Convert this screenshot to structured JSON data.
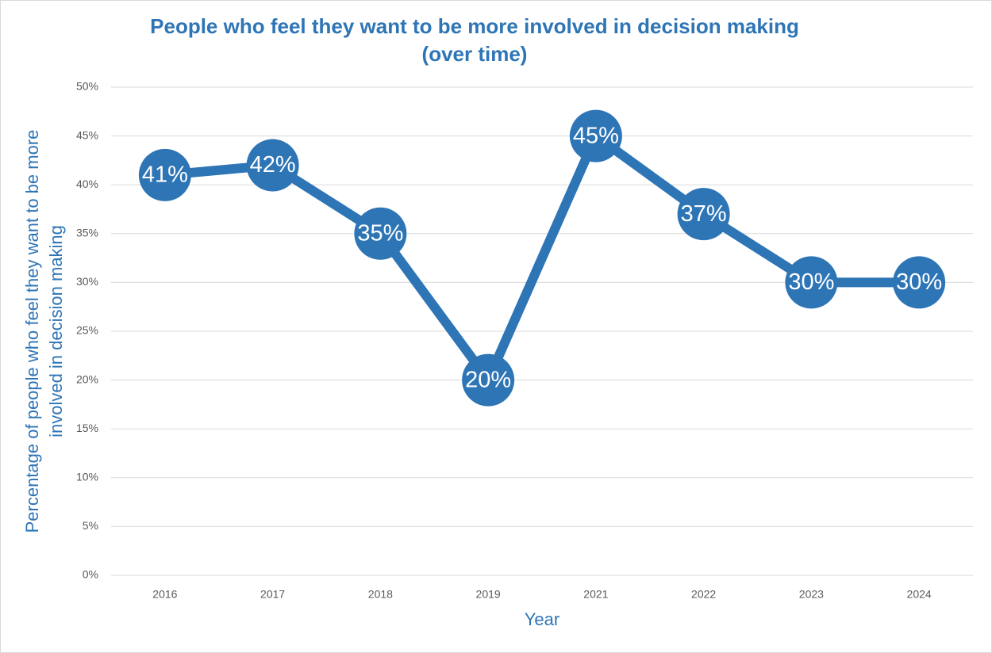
{
  "chart_data": {
    "type": "line",
    "title": [
      "People who feel they want to be more involved in decision making",
      "(over time)"
    ],
    "x_label": "Year",
    "y_label": [
      "Percentage of people who feel they want to be more",
      "involved in decision making"
    ],
    "categories": [
      "2016",
      "2017",
      "2018",
      "2019",
      "2021",
      "2022",
      "2023",
      "2024"
    ],
    "series": [
      {
        "name": "Percentage",
        "color": "#2e75b6",
        "values": [
          41,
          42,
          35,
          20,
          45,
          37,
          30,
          30
        ],
        "value_labels": [
          "41%",
          "42%",
          "35%",
          "20%",
          "45%",
          "37%",
          "30%",
          "30%"
        ]
      }
    ],
    "ylim": [
      0,
      50
    ],
    "yticks": [
      {
        "value": 0,
        "label": "0%"
      },
      {
        "value": 5,
        "label": "5%"
      },
      {
        "value": 10,
        "label": "10%"
      },
      {
        "value": 15,
        "label": "15%"
      },
      {
        "value": 20,
        "label": "20%"
      },
      {
        "value": 25,
        "label": "25%"
      },
      {
        "value": 30,
        "label": "30%"
      },
      {
        "value": 35,
        "label": "35%"
      },
      {
        "value": 40,
        "label": "40%"
      },
      {
        "value": 45,
        "label": "45%"
      },
      {
        "value": 50,
        "label": "50%"
      }
    ],
    "grid": true
  }
}
